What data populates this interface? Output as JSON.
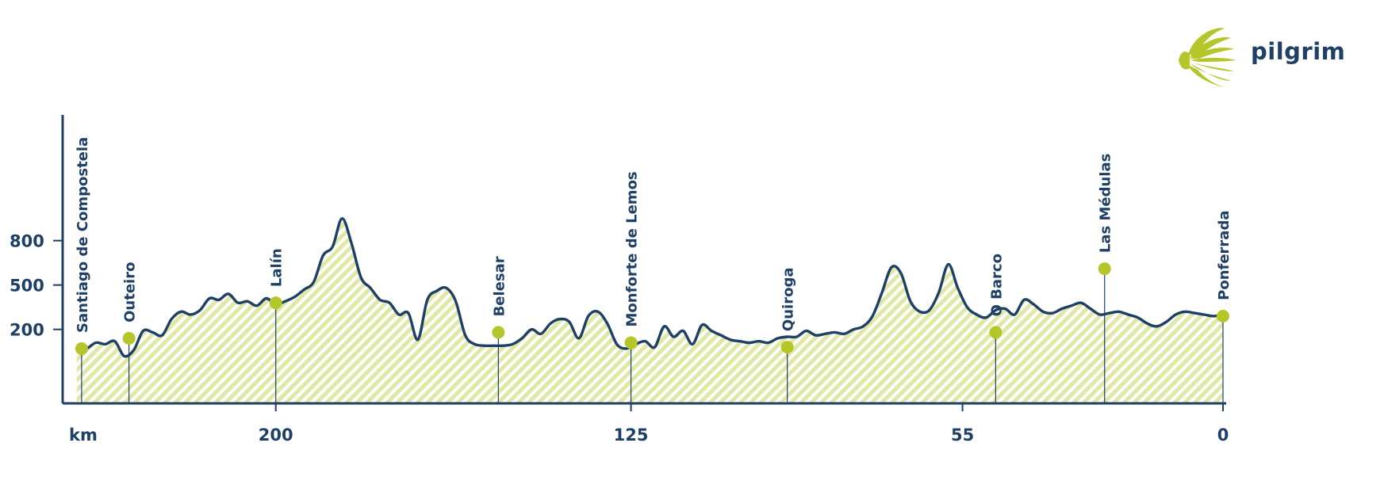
{
  "brand": {
    "name": "pilgrim",
    "color": "#1e3f66",
    "accent": "#b5c62b",
    "fill": "#e4ebb0"
  },
  "chart_data": {
    "type": "area",
    "title": "",
    "xlabel": "km",
    "ylabel": "",
    "x_reversed": true,
    "xlim": [
      245,
      0
    ],
    "ylim": [
      -300,
      1650
    ],
    "x_ticks": [
      200,
      125,
      55,
      0
    ],
    "y_ticks": [
      800,
      500,
      200
    ],
    "profile_x": [
      242,
      240,
      238,
      236,
      234,
      232,
      230,
      228,
      226,
      224,
      222,
      220,
      218,
      216,
      214,
      212,
      210,
      208,
      206,
      204,
      202,
      200,
      198,
      196,
      194,
      192,
      190,
      188,
      186,
      184,
      182,
      180,
      178,
      176,
      174,
      172,
      170,
      168,
      166,
      164,
      162,
      160,
      158,
      156,
      154,
      152,
      150,
      148,
      146,
      144,
      142,
      140,
      138,
      136,
      134,
      132,
      130,
      128,
      126,
      124,
      122,
      120,
      118,
      116,
      114,
      112,
      110,
      108,
      106,
      104,
      102,
      100,
      98,
      96,
      94,
      92,
      90,
      88,
      86,
      84,
      82,
      80,
      78,
      76,
      74,
      72,
      70,
      68,
      66,
      64,
      62,
      60,
      58,
      56,
      54,
      52,
      50,
      48,
      46,
      44,
      42,
      40,
      38,
      36,
      34,
      32,
      30,
      28,
      26,
      24,
      22,
      20,
      18,
      16,
      14,
      12,
      10,
      8,
      6,
      4,
      2,
      0
    ],
    "profile_y": [
      70,
      70,
      110,
      100,
      120,
      20,
      60,
      190,
      180,
      160,
      270,
      320,
      300,
      330,
      410,
      400,
      440,
      380,
      390,
      360,
      410,
      370,
      390,
      420,
      470,
      520,
      700,
      760,
      950,
      780,
      550,
      480,
      400,
      380,
      300,
      310,
      130,
      400,
      460,
      480,
      390,
      160,
      100,
      90,
      90,
      90,
      100,
      140,
      200,
      170,
      240,
      270,
      250,
      140,
      290,
      320,
      240,
      100,
      70,
      100,
      120,
      80,
      220,
      150,
      190,
      100,
      230,
      190,
      160,
      130,
      120,
      110,
      120,
      110,
      140,
      150,
      150,
      190,
      160,
      170,
      180,
      170,
      200,
      220,
      290,
      450,
      620,
      580,
      390,
      320,
      330,
      450,
      640,
      480,
      350,
      300,
      280,
      330,
      340,
      300,
      400,
      370,
      320,
      310,
      340,
      360,
      380,
      340,
      300,
      310,
      320,
      300,
      280,
      240,
      220,
      250,
      300,
      320,
      310,
      300,
      290,
      300
    ],
    "locations": [
      {
        "name": "Santiago de Compostela",
        "km": 241,
        "elev": 70
      },
      {
        "name": "Outeiro",
        "km": 231,
        "elev": 140
      },
      {
        "name": "Lalín",
        "km": 200,
        "elev": 380
      },
      {
        "name": "Belesar",
        "km": 153,
        "elev": 180
      },
      {
        "name": "Monforte de Lemos",
        "km": 125,
        "elev": 110
      },
      {
        "name": "Quiroga",
        "km": 92,
        "elev": 80
      },
      {
        "name": "O Barco",
        "km": 48,
        "elev": 180
      },
      {
        "name": "Las Médulas",
        "km": 25,
        "elev": 610
      },
      {
        "name": "Ponferrada",
        "km": 0,
        "elev": 290
      }
    ]
  }
}
